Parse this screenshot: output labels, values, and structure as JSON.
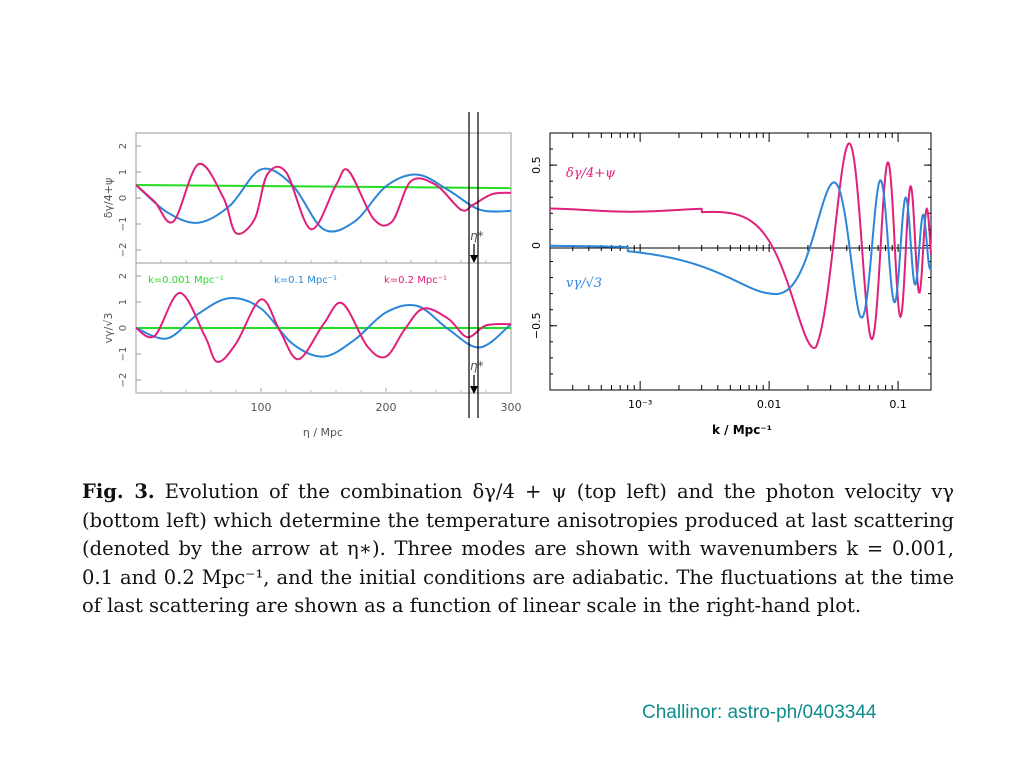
{
  "caption": {
    "label": "Fig. 3.",
    "text": "Evolution of the combination δγ/4 + ψ (top left) and the photon velocity vγ (bottom left) which determine the temperature anisotropies produced at last scattering (denoted by the arrow at η∗). Three modes are shown with wavenumbers k = 0.001, 0.1 and 0.2 Mpc⁻¹, and the initial conditions are adiabatic. The fluctuations at the time of last scattering are shown as a function of linear scale in the right-hand plot."
  },
  "credit": "Challinor: astro-ph/0403344",
  "colors": {
    "green": "#22dd22",
    "blue": "#2b86d9",
    "pink": "#e0207a"
  },
  "chart_data": [
    {
      "type": "line",
      "panel": "top-left",
      "xlim": [
        0,
        300
      ],
      "ylim": [
        -2.5,
        2.5
      ],
      "yticks": [
        "2",
        "1",
        "0",
        "−1",
        "−2"
      ],
      "ylabel": "δγ/4+ψ",
      "marker_label": "η*",
      "series": [
        {
          "name": "k=0.001 Mpc⁻¹",
          "color": "#22dd22",
          "x": [
            0,
            300
          ],
          "y": [
            0.5,
            0.38
          ]
        },
        {
          "name": "k=0.1 Mpc⁻¹",
          "color": "#2b86d9",
          "x": [
            0,
            25,
            50,
            75,
            100,
            125,
            150,
            175,
            200,
            225,
            250,
            275,
            300
          ],
          "y": [
            0.5,
            -0.55,
            -0.95,
            -0.3,
            1.1,
            0.5,
            -1.2,
            -0.9,
            0.45,
            0.9,
            0.3,
            -0.45,
            -0.5
          ]
        },
        {
          "name": "k=0.2 Mpc⁻¹",
          "color": "#e0207a",
          "x": [
            0,
            15,
            30,
            50,
            70,
            80,
            95,
            105,
            120,
            140,
            160,
            170,
            190,
            205,
            220,
            240,
            260,
            270,
            285,
            300
          ],
          "y": [
            0.5,
            -0.15,
            -0.9,
            1.3,
            0.0,
            -1.35,
            -0.8,
            0.9,
            1.0,
            -1.2,
            0.5,
            1.05,
            -0.8,
            -0.9,
            0.65,
            0.5,
            -0.45,
            -0.25,
            0.15,
            0.2
          ]
        }
      ]
    },
    {
      "type": "line",
      "panel": "bottom-left",
      "xlim": [
        0,
        300
      ],
      "ylim": [
        -2.5,
        2.5
      ],
      "xticks": [
        "100",
        "200",
        "300"
      ],
      "yticks": [
        "2",
        "1",
        "0",
        "−1",
        "−2"
      ],
      "xlabel": "η / Mpc",
      "ylabel": "vγ/√3",
      "marker_label": "η*",
      "legend": [
        "k=0.001 Mpc⁻¹",
        "k=0.1 Mpc⁻¹",
        "k=0.2 Mpc⁻¹"
      ],
      "series": [
        {
          "name": "k=0.001 Mpc⁻¹",
          "color": "#22dd22",
          "x": [
            0,
            300
          ],
          "y": [
            0.0,
            0.0
          ]
        },
        {
          "name": "k=0.1 Mpc⁻¹",
          "color": "#2b86d9",
          "x": [
            0,
            25,
            50,
            75,
            100,
            125,
            150,
            175,
            200,
            225,
            250,
            275,
            300
          ],
          "y": [
            0.0,
            -0.4,
            0.55,
            1.15,
            0.75,
            -0.6,
            -1.1,
            -0.45,
            0.6,
            0.85,
            -0.05,
            -0.75,
            0.15
          ]
        },
        {
          "name": "k=0.2 Mpc⁻¹",
          "color": "#e0207a",
          "x": [
            0,
            15,
            35,
            55,
            65,
            80,
            100,
            115,
            130,
            150,
            165,
            185,
            200,
            215,
            230,
            250,
            265,
            280,
            300
          ],
          "y": [
            0.0,
            -0.3,
            1.35,
            -0.3,
            -1.3,
            -0.6,
            1.1,
            -0.1,
            -1.2,
            0.15,
            0.95,
            -0.7,
            -1.1,
            -0.05,
            0.75,
            0.35,
            -0.35,
            0.1,
            0.15
          ]
        }
      ]
    },
    {
      "type": "line",
      "panel": "right",
      "xscale": "log",
      "xlim": [
        0.0002,
        0.18
      ],
      "ylim": [
        -0.9,
        0.7
      ],
      "xticks": [
        "10⁻³",
        "0.01",
        "0.1"
      ],
      "yticks": [
        "0.5",
        "0",
        "−0.5"
      ],
      "xlabel": "k / Mpc⁻¹",
      "series": [
        {
          "name": "δγ/4+ψ",
          "color": "#e0207a"
        },
        {
          "name": "vγ/√3",
          "color": "#2b86d9"
        }
      ]
    }
  ]
}
